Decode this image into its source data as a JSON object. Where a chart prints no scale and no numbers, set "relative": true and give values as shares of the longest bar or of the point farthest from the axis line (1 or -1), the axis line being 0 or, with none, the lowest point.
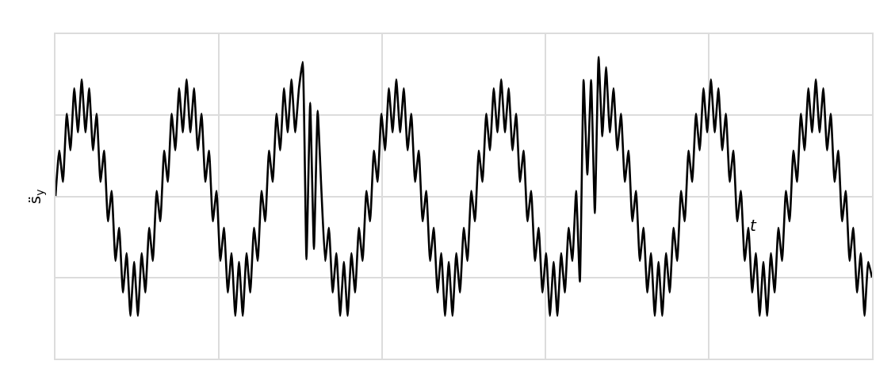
{
  "chart_data": {
    "type": "line",
    "relative": true,
    "grid": true,
    "xlabel": "t",
    "ylabel": "s̈$_{y}$",
    "categories": [
      null,
      null,
      null,
      null,
      null,
      null,
      null,
      null,
      null,
      null,
      null,
      null,
      null,
      null,
      null,
      null,
      null,
      null,
      null,
      null,
      null,
      null,
      null,
      null,
      null,
      null,
      null,
      null,
      null,
      null,
      null,
      null,
      null,
      null,
      null,
      null,
      null,
      null,
      null,
      null,
      null,
      null,
      null,
      null,
      null,
      null,
      null,
      null,
      null,
      null,
      null,
      null,
      null,
      null,
      null,
      null,
      null,
      null,
      null,
      null,
      null,
      null,
      null,
      null,
      null,
      null,
      null,
      null,
      null,
      null,
      null,
      null,
      null,
      null,
      null,
      null,
      null,
      null,
      null,
      null,
      null,
      null,
      null,
      null,
      null,
      null,
      null,
      null,
      null,
      null,
      null,
      null,
      null,
      null,
      null,
      null,
      null,
      null,
      null,
      null,
      null,
      null,
      null,
      null,
      null,
      null,
      null,
      null,
      null,
      null,
      null,
      null,
      null,
      null,
      null,
      null,
      null,
      null,
      null,
      null,
      null,
      null,
      null,
      null,
      null,
      null,
      null,
      null,
      null,
      null,
      null,
      null,
      null,
      null,
      null,
      null,
      null,
      null,
      null,
      null,
      null,
      null,
      null,
      null,
      null,
      null,
      null,
      null,
      null,
      null,
      null,
      null,
      null,
      null,
      null,
      null,
      null,
      null,
      null,
      null,
      null,
      null,
      null,
      null,
      null,
      null,
      null,
      null,
      null,
      null,
      null,
      null,
      null,
      null,
      null,
      null,
      null,
      null,
      null,
      null,
      null,
      null,
      null,
      null,
      null,
      null,
      null,
      null,
      null,
      null,
      null,
      null,
      null,
      null,
      null,
      null,
      null,
      null,
      null,
      null,
      null,
      null,
      null,
      null,
      null,
      null,
      null,
      null,
      null,
      null,
      null,
      null,
      null,
      null,
      null,
      null,
      null,
      null,
      null
    ],
    "series": [
      {
        "color": "#000000",
        "values": [
          0.539,
          0.69,
          0.586,
          0.812,
          0.691,
          0.896,
          0.75,
          0.926,
          0.75,
          0.896,
          0.691,
          0.812,
          0.586,
          0.69,
          0.455,
          0.556,
          0.324,
          0.434,
          0.219,
          0.35,
          0.142,
          0.321,
          0.142,
          0.35,
          0.219,
          0.434,
          0.324,
          0.556,
          0.455,
          0.69,
          0.586,
          0.812,
          0.691,
          0.896,
          0.75,
          0.926,
          0.75,
          0.896,
          0.691,
          0.812,
          0.586,
          0.69,
          0.455,
          0.556,
          0.324,
          0.434,
          0.219,
          0.35,
          0.142,
          0.321,
          0.142,
          0.35,
          0.219,
          0.434,
          0.324,
          0.556,
          0.455,
          0.69,
          0.586,
          0.812,
          0.691,
          0.896,
          0.75,
          0.926,
          0.75,
          0.896,
          0.984,
          0.329,
          0.848,
          0.363,
          0.822,
          0.556,
          0.324,
          0.434,
          0.219,
          0.35,
          0.142,
          0.321,
          0.142,
          0.35,
          0.219,
          0.434,
          0.324,
          0.556,
          0.455,
          0.69,
          0.586,
          0.812,
          0.691,
          0.896,
          0.75,
          0.926,
          0.75,
          0.896,
          0.691,
          0.812,
          0.586,
          0.69,
          0.455,
          0.556,
          0.324,
          0.434,
          0.219,
          0.35,
          0.142,
          0.321,
          0.142,
          0.35,
          0.219,
          0.434,
          0.324,
          0.556,
          0.455,
          0.69,
          0.586,
          0.812,
          0.691,
          0.896,
          0.75,
          0.926,
          0.75,
          0.896,
          0.691,
          0.812,
          0.586,
          0.69,
          0.455,
          0.556,
          0.324,
          0.434,
          0.219,
          0.35,
          0.142,
          0.321,
          0.142,
          0.35,
          0.219,
          0.434,
          0.324,
          0.556,
          0.255,
          0.924,
          0.61,
          0.924,
          0.482,
          1,
          0.737,
          0.967,
          0.75,
          0.896,
          0.691,
          0.812,
          0.586,
          0.69,
          0.455,
          0.556,
          0.324,
          0.434,
          0.219,
          0.35,
          0.142,
          0.321,
          0.142,
          0.35,
          0.219,
          0.434,
          0.324,
          0.556,
          0.455,
          0.69,
          0.586,
          0.812,
          0.691,
          0.896,
          0.75,
          0.926,
          0.75,
          0.896,
          0.691,
          0.812,
          0.586,
          0.69,
          0.455,
          0.556,
          0.324,
          0.434,
          0.219,
          0.35,
          0.142,
          0.321,
          0.142,
          0.35,
          0.219,
          0.434,
          0.324,
          0.556,
          0.455,
          0.69,
          0.586,
          0.812,
          0.691,
          0.896,
          0.75,
          0.926,
          0.75,
          0.896,
          0.691,
          0.812,
          0.586,
          0.69,
          0.455,
          0.556,
          0.324,
          0.434,
          0.219,
          0.35,
          0.142,
          0.321,
          0.269
        ]
      }
    ]
  }
}
